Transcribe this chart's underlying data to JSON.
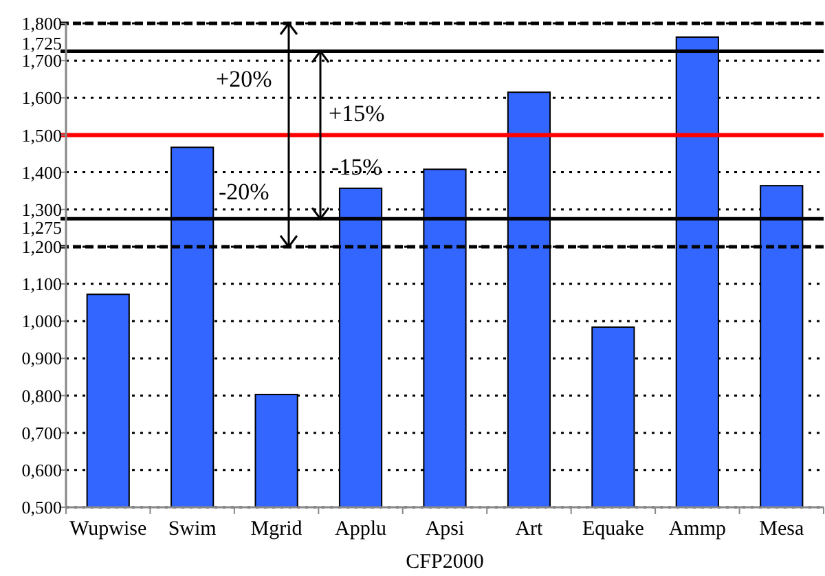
{
  "chart_data": {
    "type": "bar",
    "xlabel": "CFP2000",
    "categories": [
      "Wupwise",
      "Swim",
      "Mgrid",
      "Applu",
      "Apsi",
      "Art",
      "Equake",
      "Ammp",
      "Mesa"
    ],
    "values": [
      1.072,
      1.467,
      0.803,
      1.357,
      1.408,
      1.615,
      0.984,
      1.763,
      1.364
    ],
    "color": "#3366ff",
    "ylim": [
      0.5,
      1.8
    ],
    "yticks": [
      {
        "value": 0.5,
        "label": "0,500"
      },
      {
        "value": 0.6,
        "label": "0,600"
      },
      {
        "value": 0.7,
        "label": "0,700"
      },
      {
        "value": 0.8,
        "label": "0,800"
      },
      {
        "value": 0.9,
        "label": "0,900"
      },
      {
        "value": 1.0,
        "label": "1,000"
      },
      {
        "value": 1.1,
        "label": "1,100"
      },
      {
        "value": 1.2,
        "label": "1,200"
      },
      {
        "value": 1.3,
        "label": "1,300"
      },
      {
        "value": 1.4,
        "label": "1,400"
      },
      {
        "value": 1.5,
        "label": "1,500"
      },
      {
        "value": 1.6,
        "label": "1,600"
      },
      {
        "value": 1.7,
        "label": "1,700"
      },
      {
        "value": 1.8,
        "label": "1,800"
      }
    ],
    "grid": "y",
    "ref_lines": [
      {
        "axis": "y",
        "value": 1.5,
        "color": "#ff0000",
        "line_style": "solid"
      },
      {
        "axis": "y",
        "value": 1.725,
        "label": "1,725",
        "color": "#000000",
        "line_style": "solid"
      },
      {
        "axis": "y",
        "value": 1.275,
        "label": "1,275",
        "color": "#000000",
        "line_style": "solid"
      },
      {
        "axis": "y",
        "value": 1.8,
        "color": "#000000",
        "line_style": "dashed"
      },
      {
        "axis": "y",
        "value": 1.2,
        "color": "#000000",
        "line_style": "dashed"
      }
    ],
    "annotations": [
      "+20%",
      "+15%",
      "-15%",
      "-20%"
    ]
  }
}
